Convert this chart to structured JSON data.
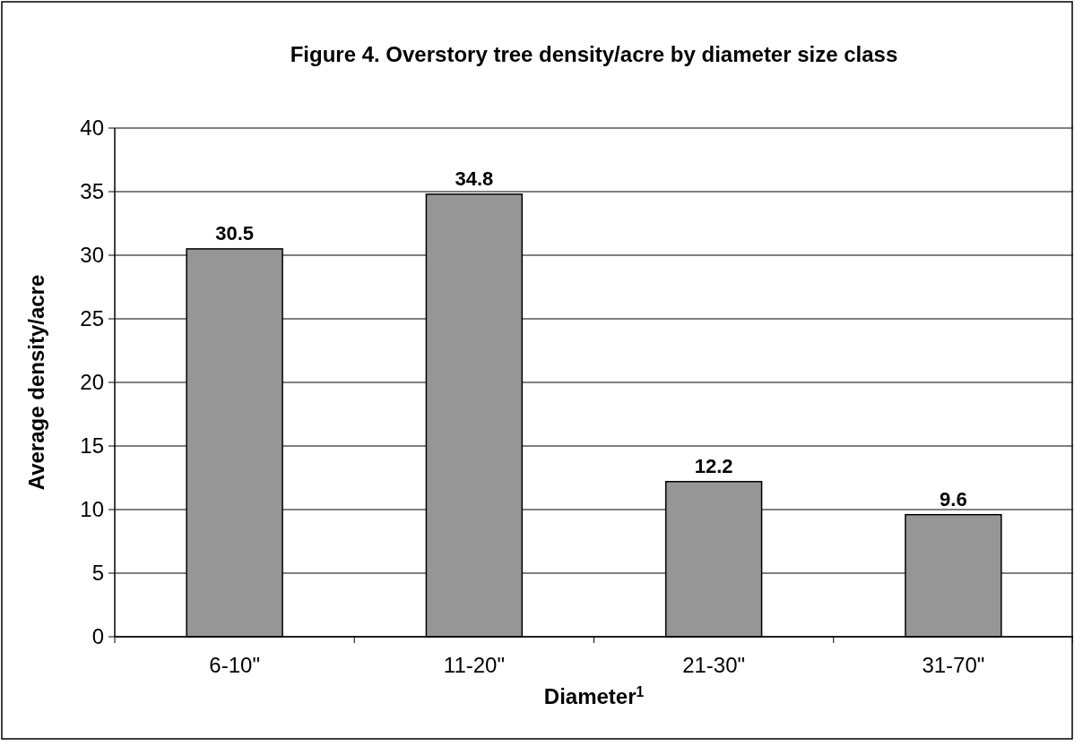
{
  "chart_data": {
    "type": "bar",
    "title": "Figure 4.  Overstory tree density/acre by diameter size class",
    "xlabel": "Diameter$^{1}$",
    "ylabel": "Average density/acre",
    "categories": [
      "6-10\"",
      "11-20\"",
      "21-30\"",
      "31-70\""
    ],
    "values": [
      30.5,
      34.8,
      12.2,
      9.6
    ],
    "color": "#969696",
    "ylim": [
      0,
      40
    ],
    "yticks": [
      0,
      5,
      10,
      15,
      20,
      25,
      30,
      35,
      40
    ],
    "grid": "y",
    "data_labels": true
  }
}
